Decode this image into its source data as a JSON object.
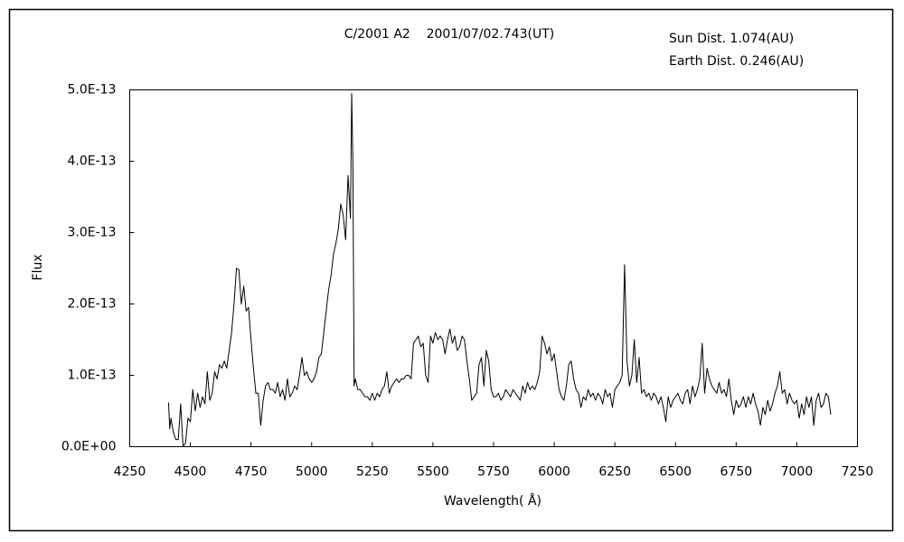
{
  "chart_data": {
    "type": "line",
    "title": "C/2001 A2    2001/07/02.743(UT)",
    "annotations": [
      "Sun Dist. 1.074(AU)",
      "Earth Dist. 0.246(AU)"
    ],
    "x_label": "Wavelength( Å)",
    "y_label": "Flux",
    "xlim": [
      4250,
      7250
    ],
    "xticks": [
      4250,
      4500,
      4750,
      5000,
      5250,
      5500,
      5750,
      6000,
      6250,
      6500,
      6750,
      7000,
      7250
    ],
    "ylim": [
      0,
      5e-13
    ],
    "yticks": [
      {
        "value": 0,
        "label": "0.0E+00"
      },
      {
        "value": 1e-13,
        "label": "1.0E-13"
      },
      {
        "value": 2e-13,
        "label": "2.0E-13"
      },
      {
        "value": 3e-13,
        "label": "3.0E-13"
      },
      {
        "value": 4e-13,
        "label": "4.0E-13"
      },
      {
        "value": 5e-13,
        "label": "5.0E-13"
      }
    ],
    "color": "#000000",
    "x": [
      4410,
      4415,
      4420,
      4430,
      4440,
      4450,
      4460,
      4470,
      4480,
      4490,
      4500,
      4510,
      4520,
      4530,
      4540,
      4550,
      4560,
      4570,
      4580,
      4590,
      4600,
      4610,
      4620,
      4630,
      4640,
      4650,
      4660,
      4670,
      4680,
      4690,
      4700,
      4710,
      4720,
      4730,
      4740,
      4750,
      4760,
      4770,
      4780,
      4790,
      4800,
      4810,
      4820,
      4830,
      4840,
      4850,
      4860,
      4870,
      4880,
      4890,
      4900,
      4910,
      4920,
      4930,
      4940,
      4950,
      4960,
      4970,
      4980,
      4990,
      5000,
      5010,
      5020,
      5030,
      5040,
      5050,
      5060,
      5070,
      5080,
      5090,
      5100,
      5110,
      5120,
      5130,
      5140,
      5150,
      5160,
      5165,
      5170,
      5175,
      5180,
      5190,
      5200,
      5210,
      5220,
      5230,
      5240,
      5250,
      5260,
      5270,
      5280,
      5290,
      5300,
      5310,
      5320,
      5330,
      5340,
      5350,
      5360,
      5370,
      5380,
      5390,
      5400,
      5410,
      5420,
      5430,
      5440,
      5450,
      5460,
      5470,
      5480,
      5490,
      5500,
      5510,
      5520,
      5530,
      5540,
      5550,
      5560,
      5570,
      5580,
      5590,
      5600,
      5610,
      5620,
      5630,
      5640,
      5650,
      5660,
      5670,
      5680,
      5690,
      5700,
      5710,
      5720,
      5730,
      5740,
      5750,
      5760,
      5770,
      5780,
      5790,
      5800,
      5810,
      5820,
      5830,
      5840,
      5850,
      5860,
      5870,
      5880,
      5890,
      5900,
      5910,
      5920,
      5930,
      5940,
      5950,
      5960,
      5970,
      5980,
      5990,
      6000,
      6010,
      6020,
      6030,
      6040,
      6050,
      6060,
      6070,
      6080,
      6090,
      6100,
      6110,
      6120,
      6130,
      6140,
      6150,
      6160,
      6170,
      6180,
      6190,
      6200,
      6210,
      6220,
      6230,
      6240,
      6250,
      6260,
      6270,
      6280,
      6290,
      6300,
      6310,
      6320,
      6330,
      6340,
      6350,
      6360,
      6370,
      6380,
      6390,
      6400,
      6410,
      6420,
      6430,
      6440,
      6450,
      6460,
      6470,
      6480,
      6490,
      6500,
      6510,
      6520,
      6530,
      6540,
      6550,
      6560,
      6570,
      6580,
      6590,
      6600,
      6610,
      6620,
      6630,
      6640,
      6650,
      6660,
      6670,
      6680,
      6690,
      6700,
      6710,
      6720,
      6730,
      6740,
      6750,
      6760,
      6770,
      6780,
      6790,
      6800,
      6810,
      6820,
      6830,
      6840,
      6850,
      6860,
      6870,
      6880,
      6890,
      6900,
      6910,
      6920,
      6930,
      6940,
      6950,
      6960,
      6970,
      6980,
      6990,
      7000,
      7010,
      7020,
      7030,
      7040,
      7050,
      7060,
      7070,
      7080,
      7090,
      7100,
      7110,
      7120,
      7130,
      7140
    ],
    "values": [
      6.2e-14,
      2.5e-14,
      4e-14,
      2e-14,
      1e-14,
      1e-14,
      6e-14,
      0.0,
      5e-15,
      4e-14,
      3.5e-14,
      8e-14,
      5e-14,
      7.5e-14,
      5.5e-14,
      7e-14,
      6e-14,
      1.05e-13,
      6.5e-14,
      7.5e-14,
      1.05e-13,
      9.5e-14,
      1.15e-13,
      1.1e-13,
      1.2e-13,
      1.1e-13,
      1.35e-13,
      1.6e-13,
      2e-13,
      2.5e-13,
      2.48e-13,
      2e-13,
      2.25e-13,
      1.9e-13,
      1.95e-13,
      1.5e-13,
      1.1e-13,
      7.5e-14,
      7.5e-14,
      3e-14,
      6.5e-14,
      8.5e-14,
      9e-14,
      8e-14,
      8e-14,
      7.5e-14,
      9e-14,
      7e-14,
      8e-14,
      6.5e-14,
      9.5e-14,
      7e-14,
      7.5e-14,
      8.5e-14,
      8e-14,
      1e-13,
      1.25e-13,
      1e-13,
      1.05e-13,
      9.5e-14,
      9e-14,
      9.5e-14,
      1.05e-13,
      1.25e-13,
      1.3e-13,
      1.6e-13,
      1.9e-13,
      2.2e-13,
      2.4e-13,
      2.7e-13,
      2.85e-13,
      3.05e-13,
      3.4e-13,
      3.25e-13,
      2.9e-13,
      3.8e-13,
      3.2e-13,
      4.95e-13,
      4e-13,
      8.5e-14,
      9.5e-14,
      8e-14,
      8e-14,
      7.5e-14,
      7e-14,
      7e-14,
      6.5e-14,
      7.5e-14,
      6.5e-14,
      7.5e-14,
      7e-14,
      8e-14,
      8.5e-14,
      1.05e-13,
      7.5e-14,
      8.5e-14,
      9e-14,
      9.5e-14,
      9e-14,
      9.5e-14,
      9.5e-14,
      1e-13,
      1e-13,
      9.5e-14,
      1.45e-13,
      1.5e-13,
      1.55e-13,
      1.4e-13,
      1.45e-13,
      1e-13,
      9e-14,
      1.55e-13,
      1.45e-13,
      1.6e-13,
      1.5e-13,
      1.55e-13,
      1.5e-13,
      1.3e-13,
      1.5e-13,
      1.65e-13,
      1.45e-13,
      1.55e-13,
      1.35e-13,
      1.4e-13,
      1.55e-13,
      1.5e-13,
      1.2e-13,
      9.5e-14,
      6.5e-14,
      7e-14,
      7.5e-14,
      1.15e-13,
      1.25e-13,
      8.5e-14,
      1.35e-13,
      1.2e-13,
      8e-14,
      7e-14,
      7e-14,
      7.5e-14,
      6.5e-14,
      7e-14,
      8e-14,
      7.5e-14,
      7e-14,
      8e-14,
      7.5e-14,
      7e-14,
      6.5e-14,
      8.5e-14,
      7.5e-14,
      9e-14,
      8e-14,
      8.5e-14,
      8e-14,
      9e-14,
      1.05e-13,
      1.55e-13,
      1.45e-13,
      1.3e-13,
      1.4e-13,
      1.2e-13,
      1.3e-13,
      1.05e-13,
      8e-14,
      7e-14,
      6.5e-14,
      8.5e-14,
      1.15e-13,
      1.2e-13,
      9.5e-14,
      8e-14,
      7.5e-14,
      5.5e-14,
      7e-14,
      6.5e-14,
      8e-14,
      7e-14,
      7.5e-14,
      6.5e-14,
      7.5e-14,
      7e-14,
      6e-14,
      8e-14,
      7e-14,
      7.5e-14,
      5.5e-14,
      8e-14,
      8.5e-14,
      9e-14,
      1e-13,
      2.55e-13,
      1.2e-13,
      8.5e-14,
      1e-13,
      1.5e-13,
      9e-14,
      1.25e-13,
      7.5e-14,
      8e-14,
      7e-14,
      7.5e-14,
      6.5e-14,
      7.5e-14,
      7e-14,
      6e-14,
      7e-14,
      5.5e-14,
      3.5e-14,
      7e-14,
      5.5e-14,
      6.5e-14,
      7e-14,
      7.5e-14,
      6.5e-14,
      6e-14,
      7.5e-14,
      8e-14,
      6e-14,
      8.5e-14,
      7e-14,
      8e-14,
      9.5e-14,
      1.45e-13,
      7.5e-14,
      1.1e-13,
      9.5e-14,
      8.5e-14,
      8e-14,
      7.5e-14,
      9e-14,
      7.5e-14,
      8e-14,
      7e-14,
      9.5e-14,
      6.5e-14,
      4.5e-14,
      6.5e-14,
      5.5e-14,
      6e-14,
      7e-14,
      5.5e-14,
      7e-14,
      6e-14,
      7.5e-14,
      6e-14,
      5e-14,
      3e-14,
      5.5e-14,
      4.5e-14,
      6.5e-14,
      5e-14,
      6e-14,
      7.5e-14,
      8.5e-14,
      1.05e-13,
      7.5e-14,
      8e-14,
      6e-14,
      7.5e-14,
      6.5e-14,
      6e-14,
      6.5e-14,
      4e-14,
      6e-14,
      4.5e-14,
      7e-14,
      5.5e-14,
      7e-14,
      3e-14,
      6.5e-14,
      7.5e-14,
      5.5e-14,
      6e-14,
      7.5e-14,
      7e-14,
      4.5e-14
    ]
  }
}
